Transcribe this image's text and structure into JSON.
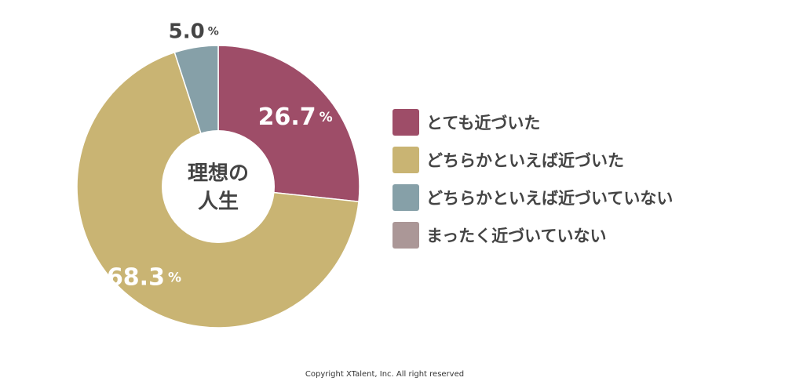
{
  "chart_data": {
    "type": "donut",
    "center_label": [
      "理想の",
      "人生"
    ],
    "slices": [
      {
        "name": "とても近づいた",
        "value": 26.7,
        "value_label": "26.7",
        "unit": "%",
        "color": "#9e4d68",
        "show_label": true
      },
      {
        "name": "どちらかといえば近づいた",
        "value": 68.3,
        "value_label": "68.3",
        "unit": "%",
        "color": "#c9b473",
        "show_label": true
      },
      {
        "name": "どちらかといえば近づいていない",
        "value": 5.0,
        "value_label": "5.0",
        "unit": "%",
        "color": "#86a0a8",
        "show_label": true
      },
      {
        "name": "まったく近づいていない",
        "value": 0,
        "value_label": "",
        "unit": "",
        "color": "#ab9797",
        "show_label": false
      }
    ],
    "legend_position": "right"
  },
  "copyright": "Copyright XTalent, Inc. All right reserved"
}
